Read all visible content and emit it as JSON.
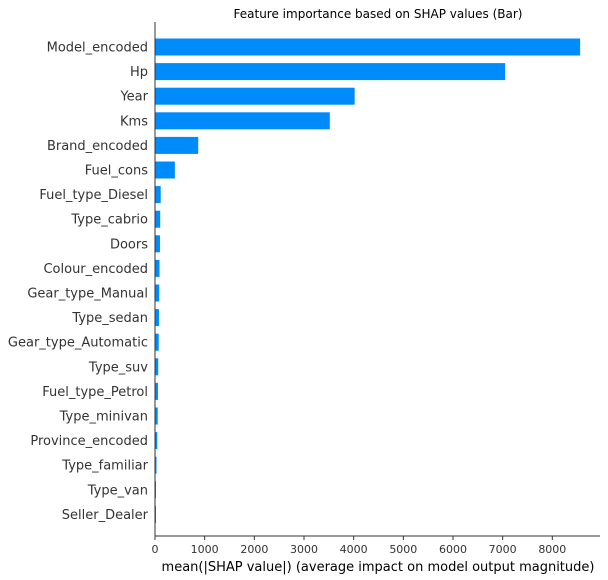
{
  "chart_data": {
    "type": "bar",
    "orientation": "horizontal",
    "title": "Feature importance based on SHAP values (Bar)",
    "xlabel": "mean(|SHAP value|) (average impact on model output magnitude)",
    "ylabel": "",
    "xlim": [
      0,
      9000
    ],
    "xticks": [
      "0",
      "1000",
      "2000",
      "3000",
      "4000",
      "5000",
      "6000",
      "7000",
      "8000"
    ],
    "categories": [
      "Model_encoded",
      "Hp",
      "Year",
      "Kms",
      "Brand_encoded",
      "Fuel_cons",
      "Fuel_type_Diesel",
      "Type_cabrio",
      "Doors",
      "Colour_encoded",
      "Gear_type_Manual",
      "Type_sedan",
      "Gear_type_Automatic",
      "Type_suv",
      "Fuel_type_Petrol",
      "Type_minivan",
      "Province_encoded",
      "Type_familiar",
      "Type_van",
      "Seller_Dealer"
    ],
    "values": [
      8560,
      7050,
      4020,
      3520,
      870,
      400,
      115,
      105,
      100,
      90,
      85,
      80,
      75,
      65,
      60,
      55,
      45,
      30,
      20,
      15
    ],
    "bar_color": "#008bfb",
    "grid": false,
    "legend": "none"
  }
}
